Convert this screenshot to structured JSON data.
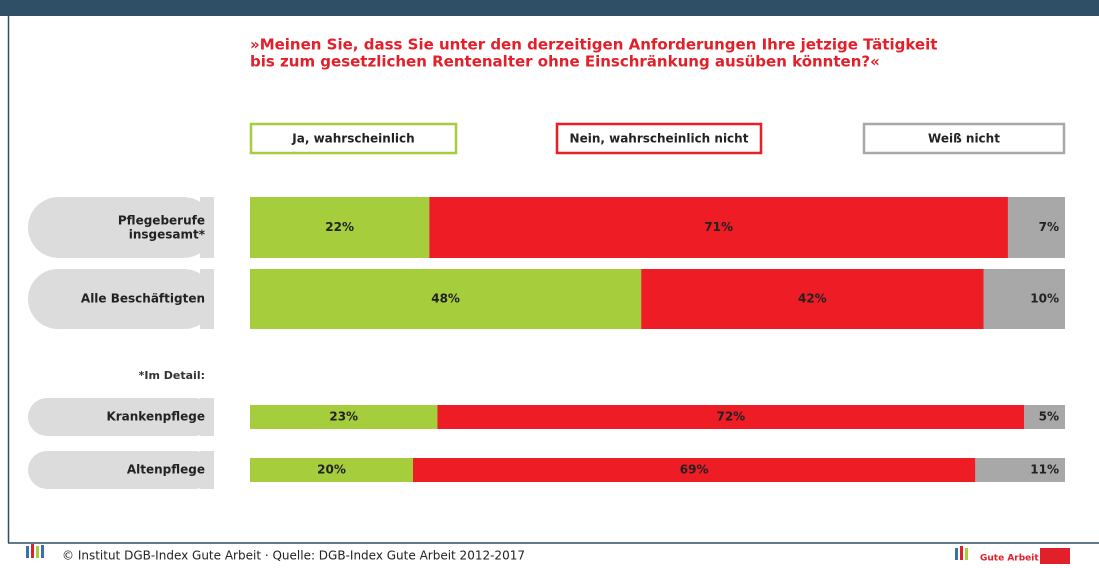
{
  "chart_data": {
    "type": "stacked_bar_horizontal",
    "title_lines": [
      "»Meinen Sie, dass Sie unter den derzeitigen Anforderungen Ihre jetzige Tätigkeit",
      "bis zum gesetzlichen Rentenalter ohne Einschränkung ausüben könnten?«"
    ],
    "categories": [
      "Pflegeberufe\ninsgesamt*",
      "Alle Beschäftigten",
      "Krankenpflege",
      "Altenpflege"
    ],
    "annotation": "*Im Detail:",
    "xlim": [
      0,
      100
    ],
    "series": [
      {
        "name": "Ja, wahrscheinlich",
        "color": "#a6cd3b",
        "values": [
          22,
          48,
          23,
          20
        ],
        "value_labels": [
          "22%",
          "48%",
          "23%",
          "20%"
        ]
      },
      {
        "name": "Nein, wahrscheinlich nicht",
        "color": "#ee1c25",
        "values": [
          71,
          42,
          72,
          69
        ],
        "value_labels": [
          "71%",
          "42%",
          "72%",
          "69%"
        ]
      },
      {
        "name": "Weiß nicht",
        "color": "#a8a8a9",
        "values": [
          7,
          10,
          5,
          11
        ],
        "value_labels": [
          "7%",
          "10%",
          "5%",
          "11%"
        ]
      }
    ],
    "footer": "© Institut DGB-Index Gute Arbeit · Quelle: DGB-Index Gute Arbeit 2012-2017",
    "logo_text": "Gute Arbeit"
  }
}
